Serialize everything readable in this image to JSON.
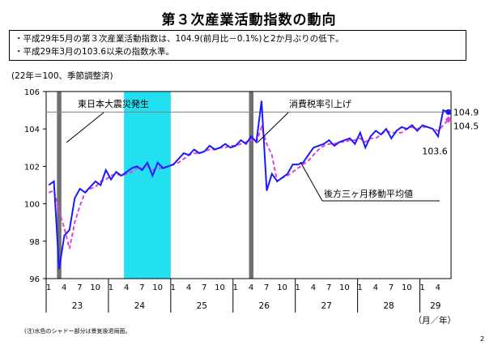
{
  "title": "第３次産業活動指数の動向",
  "bullets": [
    "・平成29年5月の第３次産業活動指数は、104.9(前月比－0.1%)と2か月ぶりの低下。",
    "・平成29年3月の103.6以来の指数水準。"
  ],
  "unit_note": "(22年＝100、季節調整済)",
  "footnote": "(注)水色のシャドー部分は景気後退局面。",
  "page_number": "2",
  "chart_data": {
    "type": "line",
    "title": "",
    "xlabel": "（月／年）",
    "ylabel": "",
    "ylim": [
      96,
      106
    ],
    "yticks": [
      96,
      98,
      100,
      102,
      104,
      106
    ],
    "x_month_ticks": [
      "1",
      "4",
      "7",
      "10",
      "1",
      "4",
      "7",
      "10",
      "1",
      "4",
      "7",
      "10",
      "1",
      "4",
      "7",
      "10",
      "1",
      "4",
      "7",
      "10",
      "1",
      "4",
      "7",
      "10",
      "1",
      "4"
    ],
    "years": [
      "23",
      "24",
      "25",
      "26",
      "27",
      "28",
      "29"
    ],
    "reference_line": 104.9,
    "series": [
      {
        "name": "",
        "color": "#1a1aff",
        "values": [
          101.0,
          101.2,
          96.5,
          98.3,
          98.6,
          100.3,
          100.8,
          100.6,
          100.9,
          101.2,
          101.0,
          101.8,
          101.3,
          101.7,
          101.5,
          101.7,
          101.9,
          102.0,
          101.8,
          102.2,
          101.5,
          102.2,
          101.9,
          102.0,
          102.1,
          102.4,
          102.7,
          102.6,
          102.9,
          102.7,
          102.8,
          103.1,
          102.9,
          103.0,
          103.2,
          103.0,
          103.1,
          103.4,
          103.2,
          103.6,
          103.3,
          105.5,
          100.7,
          101.6,
          101.2,
          101.4,
          101.6,
          102.1,
          102.1,
          102.2,
          102.6,
          103.0,
          103.1,
          103.2,
          103.4,
          103.1,
          103.3,
          103.4,
          103.5,
          103.2,
          103.8,
          103.0,
          103.6,
          103.9,
          103.7,
          104.0,
          103.5,
          103.9,
          104.1,
          104.0,
          104.2,
          103.9,
          104.2,
          104.1,
          104.0,
          103.6,
          105.0,
          104.9
        ],
        "labels": {
          "103.6": "103.6",
          "104.9": "104.9"
        }
      },
      {
        "name": "後方三ヶ月移動平均値",
        "color": "#e040e0",
        "values": [
          100.6,
          100.7,
          99.6,
          98.7,
          97.6,
          99.0,
          99.9,
          100.6,
          100.8,
          100.9,
          101.2,
          101.3,
          101.5,
          101.6,
          101.5,
          101.6,
          101.7,
          101.9,
          101.9,
          102.0,
          101.8,
          101.9,
          101.9,
          102.0,
          102.1,
          102.2,
          102.4,
          102.6,
          102.7,
          102.7,
          102.8,
          102.9,
          102.9,
          103.0,
          103.0,
          103.1,
          103.1,
          103.2,
          103.3,
          103.4,
          103.3,
          104.1,
          103.2,
          102.6,
          101.2,
          101.4,
          101.5,
          101.7,
          101.9,
          102.1,
          102.3,
          102.6,
          102.9,
          103.1,
          103.2,
          103.2,
          103.3,
          103.3,
          103.4,
          103.4,
          103.5,
          103.3,
          103.5,
          103.5,
          103.7,
          103.9,
          103.8,
          103.8,
          103.8,
          104.0,
          104.1,
          104.0,
          104.1,
          104.1,
          104.0,
          103.9,
          104.2,
          104.5
        ]
      }
    ],
    "recession_shading": {
      "color": "#22e0f0",
      "from_index": 15,
      "to_index": 23
    },
    "event_bars": [
      {
        "index": 2,
        "color": "#707070",
        "label": "東日本大震災発生"
      },
      {
        "index": 39,
        "color": "#707070",
        "label": "消費税率引上げ"
      }
    ],
    "end_labels": {
      "blue": "104.9",
      "magenta": "104.5",
      "trough": "103.6"
    }
  }
}
